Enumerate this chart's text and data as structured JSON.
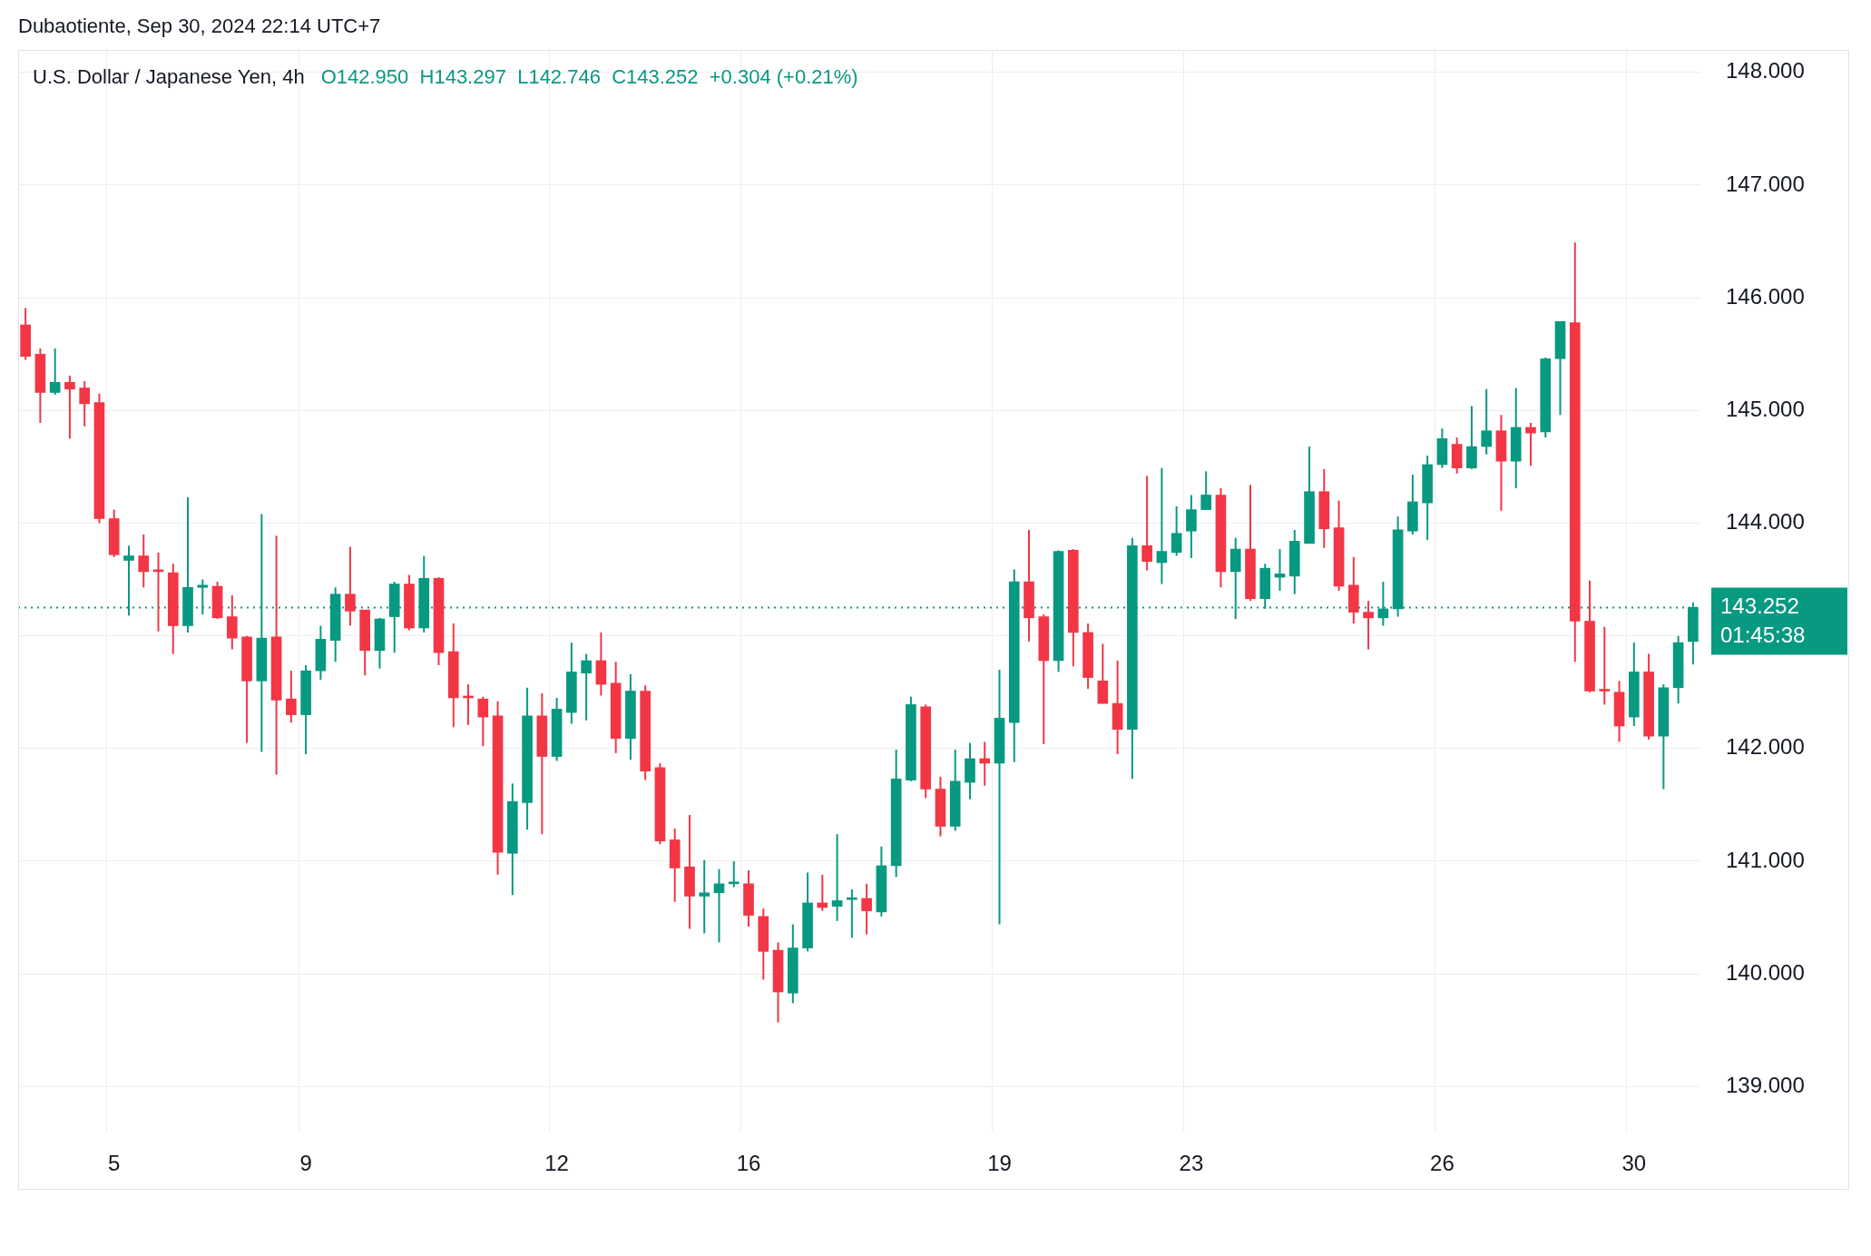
{
  "chart_data": {
    "type": "candlestick",
    "title": "U.S. Dollar / Japanese Yen, 4h",
    "subtitle": "O142.950  H143.297  L142.746  C143.252  +0.304 (+0.21%)",
    "categories": [
      null,
      null,
      null,
      null,
      null,
      null,
      "5",
      null,
      null,
      null,
      null,
      null,
      null,
      null,
      null,
      null,
      null,
      null,
      null,
      "9",
      null,
      null,
      null,
      null,
      null,
      null,
      null,
      null,
      null,
      null,
      null,
      null,
      null,
      null,
      null,
      null,
      "12",
      null,
      null,
      null,
      null,
      null,
      null,
      null,
      null,
      null,
      null,
      null,
      null,
      "16",
      null,
      null,
      null,
      null,
      null,
      null,
      null,
      null,
      null,
      null,
      null,
      null,
      null,
      null,
      null,
      null,
      "19",
      null,
      null,
      null,
      null,
      null,
      null,
      null,
      null,
      null,
      null,
      null,
      null,
      "23",
      null,
      null,
      null,
      null,
      null,
      null,
      null,
      null,
      null,
      null,
      null,
      null,
      null,
      null,
      null,
      null,
      "26",
      null,
      null,
      null,
      null,
      null,
      null,
      null,
      null,
      null,
      null,
      null,
      null,
      "30",
      null,
      null,
      null,
      null
    ],
    "ohlc": [
      [
        145.76,
        145.91,
        145.45,
        145.48
      ],
      [
        145.5,
        145.55,
        144.89,
        145.16
      ],
      [
        145.16,
        145.55,
        145.14,
        145.25
      ],
      [
        145.25,
        145.31,
        144.75,
        145.19
      ],
      [
        145.2,
        145.26,
        144.86,
        145.06
      ],
      [
        145.07,
        145.15,
        144.0,
        144.04
      ],
      [
        144.04,
        144.12,
        143.7,
        143.72
      ],
      [
        143.67,
        143.8,
        143.18,
        143.71
      ],
      [
        143.71,
        143.9,
        143.43,
        143.57
      ],
      [
        143.58,
        143.74,
        143.04,
        143.57
      ],
      [
        143.56,
        143.64,
        142.84,
        143.09
      ],
      [
        143.09,
        144.23,
        143.03,
        143.43
      ],
      [
        143.43,
        143.5,
        143.19,
        143.45
      ],
      [
        143.44,
        143.48,
        143.15,
        143.16
      ],
      [
        143.17,
        143.36,
        142.88,
        142.98
      ],
      [
        142.99,
        143.0,
        142.05,
        142.6
      ],
      [
        142.6,
        144.08,
        141.97,
        142.98
      ],
      [
        142.99,
        143.89,
        141.77,
        142.43
      ],
      [
        142.44,
        142.69,
        142.23,
        142.3
      ],
      [
        142.3,
        142.74,
        141.95,
        142.69
      ],
      [
        142.69,
        143.09,
        142.61,
        142.97
      ],
      [
        142.96,
        143.43,
        142.77,
        143.37
      ],
      [
        143.37,
        143.79,
        143.09,
        143.22
      ],
      [
        143.23,
        143.23,
        142.65,
        142.87
      ],
      [
        142.87,
        143.16,
        142.71,
        143.15
      ],
      [
        143.17,
        143.48,
        142.85,
        143.46
      ],
      [
        143.46,
        143.54,
        143.05,
        143.07
      ],
      [
        143.07,
        143.71,
        143.03,
        143.51
      ],
      [
        143.51,
        143.52,
        142.74,
        142.85
      ],
      [
        142.86,
        143.11,
        142.19,
        142.45
      ],
      [
        142.46,
        142.57,
        142.21,
        142.45
      ],
      [
        142.44,
        142.46,
        142.02,
        142.28
      ],
      [
        142.29,
        142.42,
        140.88,
        141.08
      ],
      [
        141.07,
        141.69,
        140.7,
        141.53
      ],
      [
        141.52,
        142.54,
        141.28,
        142.29
      ],
      [
        142.29,
        142.49,
        141.24,
        141.93
      ],
      [
        141.93,
        142.45,
        141.89,
        142.35
      ],
      [
        142.32,
        142.94,
        142.22,
        142.68
      ],
      [
        142.67,
        142.84,
        142.25,
        142.78
      ],
      [
        142.78,
        143.03,
        142.47,
        142.57
      ],
      [
        142.58,
        142.77,
        141.96,
        142.09
      ],
      [
        142.09,
        142.66,
        141.9,
        142.51
      ],
      [
        142.51,
        142.56,
        141.72,
        141.8
      ],
      [
        141.83,
        141.87,
        141.15,
        141.18
      ],
      [
        141.19,
        141.29,
        140.64,
        140.94
      ],
      [
        140.95,
        141.41,
        140.4,
        140.69
      ],
      [
        140.69,
        141.01,
        140.36,
        140.72
      ],
      [
        140.72,
        140.93,
        140.28,
        140.8
      ],
      [
        140.8,
        141.0,
        140.77,
        140.81
      ],
      [
        140.8,
        140.92,
        140.42,
        140.52
      ],
      [
        140.51,
        140.58,
        139.95,
        140.2
      ],
      [
        140.21,
        140.28,
        139.57,
        139.84
      ],
      [
        139.83,
        140.44,
        139.74,
        140.23
      ],
      [
        140.23,
        140.9,
        140.2,
        140.63
      ],
      [
        140.63,
        140.88,
        140.56,
        140.59
      ],
      [
        140.6,
        141.24,
        140.47,
        140.65
      ],
      [
        140.66,
        140.75,
        140.32,
        140.67
      ],
      [
        140.67,
        140.8,
        140.35,
        140.56
      ],
      [
        140.55,
        141.13,
        140.51,
        140.96
      ],
      [
        140.96,
        141.99,
        140.86,
        141.73
      ],
      [
        141.72,
        142.46,
        141.71,
        142.39
      ],
      [
        142.37,
        142.39,
        141.56,
        141.64
      ],
      [
        141.64,
        141.75,
        141.22,
        141.31
      ],
      [
        141.31,
        141.99,
        141.27,
        141.71
      ],
      [
        141.7,
        142.05,
        141.55,
        141.91
      ],
      [
        141.91,
        142.06,
        141.67,
        141.87
      ],
      [
        141.87,
        142.7,
        140.44,
        142.27
      ],
      [
        142.23,
        143.59,
        141.88,
        143.48
      ],
      [
        143.48,
        143.94,
        142.95,
        143.16
      ],
      [
        143.17,
        143.19,
        142.04,
        142.78
      ],
      [
        142.78,
        143.76,
        142.68,
        143.75
      ],
      [
        143.76,
        143.77,
        142.73,
        143.03
      ],
      [
        143.03,
        143.11,
        142.53,
        142.63
      ],
      [
        142.6,
        142.93,
        142.4,
        142.4
      ],
      [
        142.4,
        142.78,
        141.95,
        142.17
      ],
      [
        142.17,
        143.87,
        141.73,
        143.8
      ],
      [
        143.8,
        144.42,
        143.58,
        143.66
      ],
      [
        143.65,
        144.49,
        143.46,
        143.75
      ],
      [
        143.74,
        144.15,
        143.71,
        143.91
      ],
      [
        143.93,
        144.25,
        143.69,
        144.12
      ],
      [
        144.12,
        144.46,
        144.12,
        144.25
      ],
      [
        144.25,
        144.31,
        143.43,
        143.57
      ],
      [
        143.57,
        143.87,
        143.15,
        143.77
      ],
      [
        143.77,
        144.34,
        143.31,
        143.33
      ],
      [
        143.33,
        143.64,
        143.24,
        143.6
      ],
      [
        143.52,
        143.77,
        143.4,
        143.55
      ],
      [
        143.53,
        143.94,
        143.37,
        143.84
      ],
      [
        143.82,
        144.68,
        143.82,
        144.28
      ],
      [
        144.28,
        144.48,
        143.78,
        143.95
      ],
      [
        143.96,
        144.2,
        143.4,
        143.44
      ],
      [
        143.45,
        143.7,
        143.11,
        143.21
      ],
      [
        143.21,
        143.31,
        142.88,
        143.16
      ],
      [
        143.16,
        143.48,
        143.09,
        143.24
      ],
      [
        143.24,
        144.06,
        143.17,
        143.94
      ],
      [
        143.93,
        144.43,
        143.9,
        144.19
      ],
      [
        144.18,
        144.6,
        143.85,
        144.52
      ],
      [
        144.52,
        144.84,
        144.49,
        144.75
      ],
      [
        144.7,
        144.76,
        144.44,
        144.49
      ],
      [
        144.49,
        145.04,
        144.48,
        144.68
      ],
      [
        144.68,
        145.19,
        144.61,
        144.82
      ],
      [
        144.82,
        144.96,
        144.11,
        144.55
      ],
      [
        144.55,
        145.2,
        144.31,
        144.85
      ],
      [
        144.85,
        144.89,
        144.51,
        144.8
      ],
      [
        144.81,
        145.47,
        144.76,
        145.46
      ],
      [
        145.46,
        145.79,
        144.96,
        145.79
      ],
      [
        145.78,
        146.49,
        142.77,
        143.13
      ],
      [
        143.13,
        143.49,
        142.5,
        142.51
      ],
      [
        142.52,
        143.08,
        142.39,
        142.51
      ],
      [
        142.5,
        142.6,
        142.06,
        142.2
      ],
      [
        142.28,
        142.94,
        142.2,
        142.68
      ],
      [
        142.68,
        142.84,
        142.08,
        142.11
      ],
      [
        142.11,
        142.57,
        141.64,
        142.54
      ],
      [
        142.54,
        143.0,
        142.4,
        142.94
      ],
      [
        142.95,
        143.297,
        142.746,
        143.252
      ]
    ],
    "colors": [
      "#f23645",
      "#f23645",
      "#089981",
      "#f23645",
      "#f23645",
      "#f23645",
      "#f23645",
      "#089981",
      "#f23645",
      "#f23645",
      "#f23645",
      "#089981",
      "#089981",
      "#f23645",
      "#f23645",
      "#f23645",
      "#089981",
      "#f23645",
      "#f23645",
      "#089981",
      "#089981",
      "#089981",
      "#f23645",
      "#f23645",
      "#089981",
      "#089981",
      "#f23645",
      "#089981",
      "#f23645",
      "#f23645",
      "#f23645",
      "#f23645",
      "#f23645",
      "#089981",
      "#089981",
      "#f23645",
      "#089981",
      "#089981",
      "#089981",
      "#f23645",
      "#f23645",
      "#089981",
      "#f23645",
      "#f23645",
      "#f23645",
      "#f23645",
      "#089981",
      "#089981",
      "#089981",
      "#f23645",
      "#f23645",
      "#f23645",
      "#089981",
      "#089981",
      "#f23645",
      "#089981",
      "#089981",
      "#f23645",
      "#089981",
      "#089981",
      "#089981",
      "#f23645",
      "#f23645",
      "#089981",
      "#089981",
      "#f23645",
      "#089981",
      "#089981",
      "#f23645",
      "#f23645",
      "#089981",
      "#f23645",
      "#f23645",
      "#f23645",
      "#f23645",
      "#089981",
      "#f23645",
      "#089981",
      "#089981",
      "#089981",
      "#089981",
      "#f23645",
      "#089981",
      "#f23645",
      "#089981",
      "#089981",
      "#089981",
      "#089981",
      "#f23645",
      "#f23645",
      "#f23645",
      "#f23645",
      "#089981",
      "#089981",
      "#089981",
      "#089981",
      "#089981",
      "#f23645",
      "#089981",
      "#089981",
      "#f23645",
      "#089981",
      "#f23645",
      "#089981",
      "#089981",
      "#f23645",
      "#f23645",
      "#f23645",
      "#f23645",
      "#089981",
      "#f23645",
      "#089981",
      "#089981",
      "#089981"
    ],
    "ylim": [
      138.6,
      148.2
    ],
    "yticks": [
      {
        "value": 139,
        "label": "139.000"
      },
      {
        "value": 140,
        "label": "140.000"
      },
      {
        "value": 141,
        "label": "141.000"
      },
      {
        "value": 142,
        "label": "142.000"
      },
      {
        "value": 143,
        "label": null
      },
      {
        "value": 144,
        "label": "144.000"
      },
      {
        "value": 145,
        "label": "145.000"
      },
      {
        "value": 146,
        "label": "146.000"
      },
      {
        "value": 147,
        "label": "147.000"
      },
      {
        "value": 148,
        "label": "148.000"
      }
    ],
    "grid": true,
    "ref_lines": [
      {
        "axis": "y",
        "value": 143.252,
        "label": "143.252",
        "color": "#089981",
        "line_style": "dotted"
      }
    ],
    "annotations": [
      "Dubaotiente, Sep 30, 2024 22:14 UTC+7",
      "01:45:38"
    ]
  }
}
